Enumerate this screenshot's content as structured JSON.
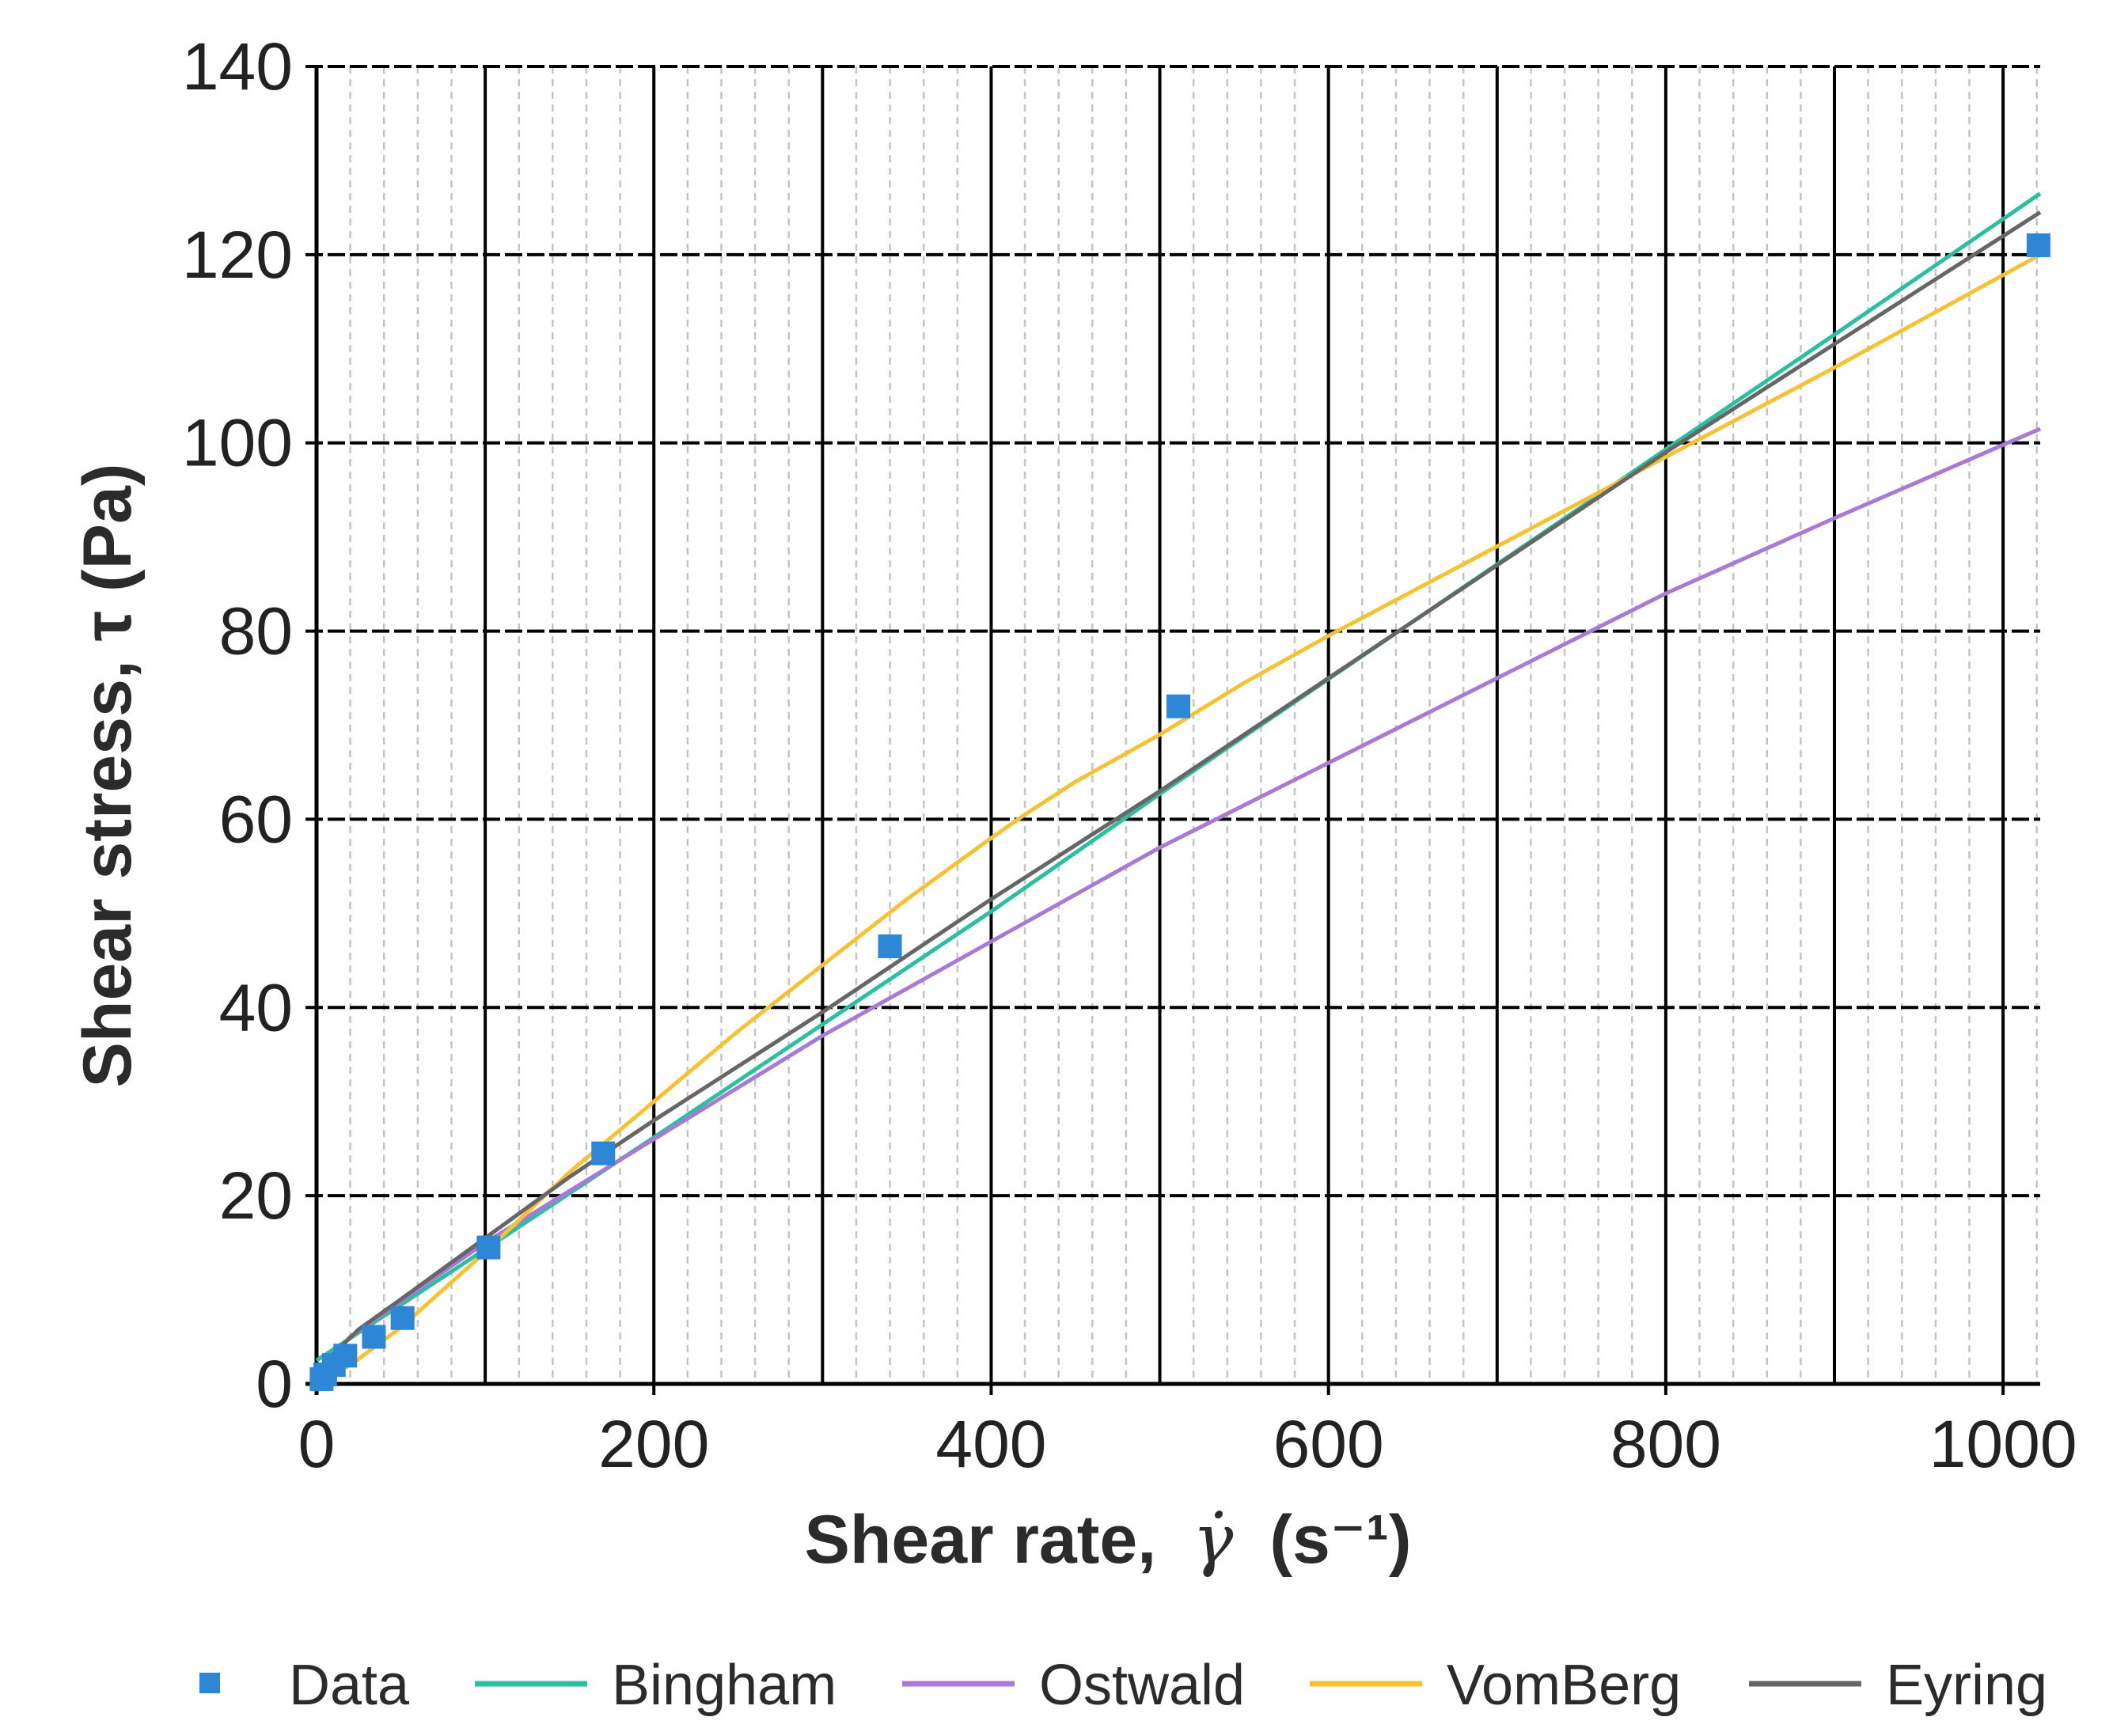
{
  "chart_data": {
    "type": "line",
    "title": "",
    "xlabel": {
      "prefix": "Shear rate,",
      "symbol": "γ̇",
      "unit": "(s⁻¹)"
    },
    "ylabel": "Shear stress, τ (Pa)",
    "xlim": [
      0,
      1022
    ],
    "ylim": [
      0,
      140
    ],
    "x_major_ticks": [
      0,
      200,
      400,
      600,
      800,
      1000
    ],
    "x_tick_labels": [
      "0",
      "200",
      "400",
      "600",
      "800",
      "1000"
    ],
    "x_grid_major": [
      0,
      100,
      200,
      300,
      400,
      500,
      600,
      700,
      800,
      900,
      1000
    ],
    "x_grid_minor_step": 20,
    "y_major_ticks": [
      0,
      20,
      40,
      60,
      80,
      100,
      120,
      140
    ],
    "y_tick_labels": [
      "0",
      "20",
      "40",
      "60",
      "80",
      "100",
      "120",
      "140"
    ],
    "grid": true,
    "legend_position": "bottom",
    "points": {
      "name": "Data",
      "color": "#2e86d6",
      "x": [
        3,
        5.1,
        10.2,
        17,
        34,
        51,
        102,
        170,
        340,
        511,
        1021
      ],
      "y": [
        0.5,
        1.0,
        2.0,
        3.0,
        5.0,
        7.0,
        14.5,
        24.5,
        46.5,
        72.0,
        121.0
      ]
    },
    "series": [
      {
        "name": "Bingham",
        "color": "#2bbfa0",
        "x": [
          0,
          100,
          200,
          300,
          400,
          500,
          600,
          700,
          800,
          900,
          1022
        ],
        "y": [
          2.5,
          14.3,
          26.2,
          38.2,
          50.2,
          62.7,
          74.9,
          87.1,
          99.3,
          111.5,
          126.5
        ]
      },
      {
        "name": "Ostwald",
        "color": "#a77ad6",
        "x": [
          0,
          5,
          20,
          50,
          100,
          200,
          300,
          400,
          500,
          600,
          700,
          800,
          900,
          1022
        ],
        "y": [
          0,
          2.0,
          5.0,
          8.8,
          15.0,
          26.0,
          37.0,
          47.0,
          57.0,
          66.0,
          75.0,
          84.0,
          92.0,
          101.5
        ]
      },
      {
        "name": "VomBerg",
        "color": "#f5c236",
        "x": [
          0,
          20,
          50,
          100,
          150,
          200,
          250,
          300,
          350,
          400,
          420,
          450,
          500,
          550,
          600,
          700,
          800,
          900,
          1022
        ],
        "y": [
          0,
          2.0,
          6.0,
          14.0,
          22.5,
          30.0,
          37.5,
          44.5,
          51.5,
          58.0,
          60.5,
          64.0,
          69.0,
          74.5,
          79.5,
          89.0,
          98.5,
          108.0,
          120.0
        ]
      },
      {
        "name": "Eyring",
        "color": "#666666",
        "x": [
          0,
          10,
          25,
          50,
          100,
          150,
          200,
          300,
          400,
          500,
          600,
          700,
          800,
          900,
          1022
        ],
        "y": [
          0,
          3.2,
          5.8,
          9.0,
          15.5,
          22.0,
          28.0,
          39.5,
          51.5,
          63.0,
          75.0,
          87.0,
          99.0,
          110.5,
          124.5
        ]
      }
    ]
  }
}
